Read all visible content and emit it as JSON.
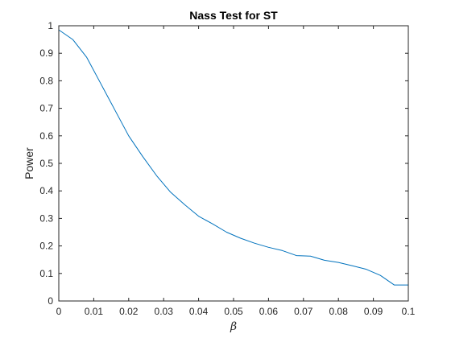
{
  "chart_data": {
    "type": "line",
    "title": "Nass Test for ST",
    "xlabel": "β",
    "ylabel": "Power",
    "xlim": [
      0,
      0.1
    ],
    "ylim": [
      0,
      1
    ],
    "x_ticks": [
      "0",
      "0.01",
      "0.02",
      "0.03",
      "0.04",
      "0.05",
      "0.06",
      "0.07",
      "0.08",
      "0.09",
      "0.1"
    ],
    "y_ticks": [
      "0",
      "0.1",
      "0.2",
      "0.3",
      "0.4",
      "0.5",
      "0.6",
      "0.7",
      "0.8",
      "0.9",
      "1"
    ],
    "grid": false,
    "series": [
      {
        "color": "#0072BD",
        "x": [
          0,
          0.004,
          0.008,
          0.012,
          0.016,
          0.02,
          0.024,
          0.028,
          0.032,
          0.036,
          0.04,
          0.044,
          0.048,
          0.052,
          0.056,
          0.06,
          0.064,
          0.068,
          0.072,
          0.076,
          0.08,
          0.084,
          0.088,
          0.092,
          0.096,
          0.1
        ],
        "y": [
          0.985,
          0.95,
          0.885,
          0.79,
          0.695,
          0.6,
          0.525,
          0.455,
          0.395,
          0.35,
          0.308,
          0.28,
          0.25,
          0.228,
          0.21,
          0.195,
          0.183,
          0.165,
          0.163,
          0.148,
          0.14,
          0.128,
          0.115,
          0.093,
          0.058,
          0.058
        ]
      }
    ]
  }
}
